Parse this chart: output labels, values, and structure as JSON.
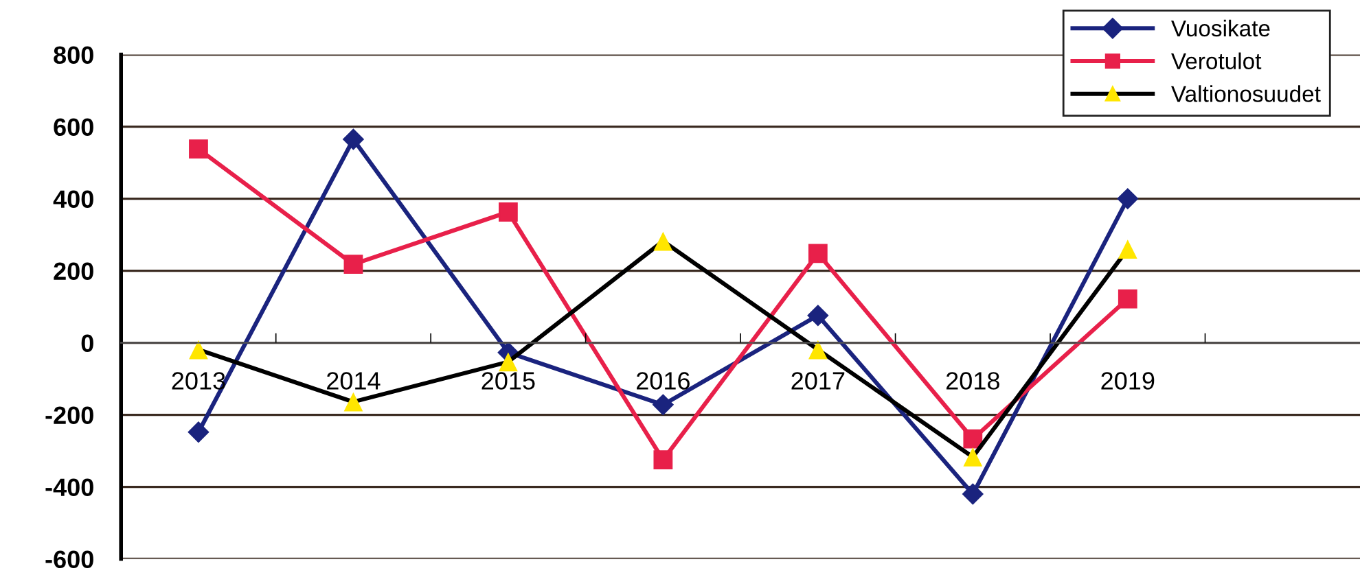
{
  "chart_data": {
    "type": "line",
    "categories": [
      "2013",
      "2014",
      "2015",
      "2016",
      "2017",
      "2018",
      "2019",
      null
    ],
    "series": [
      {
        "name": "Vuosikate",
        "color": "#1a237e",
        "marker": "diamond",
        "values": [
          -248,
          565,
          -27,
          -172,
          76,
          -420,
          400,
          null
        ]
      },
      {
        "name": "Verotulot",
        "color": "#e8204a",
        "marker": "square",
        "values": [
          538,
          218,
          363,
          -325,
          248,
          -267,
          122,
          null
        ]
      },
      {
        "name": "Valtionosuudet",
        "color": "#000000",
        "colors": [
          "#ffe600",
          "#ffe600",
          "#ffe600",
          "#ffe600",
          "#ffe600",
          "#ffe600",
          "#ffe600",
          "#ffe600"
        ],
        "marker": "triangle",
        "values": [
          -19,
          -164,
          -53,
          282,
          -19,
          -317,
          260,
          null
        ]
      }
    ],
    "ylim": [
      -600,
      800
    ],
    "yticks": [
      -600,
      -400,
      -200,
      0,
      200,
      400,
      600,
      800
    ],
    "grid": "y",
    "legend": "top right",
    "line_style": "solid"
  }
}
